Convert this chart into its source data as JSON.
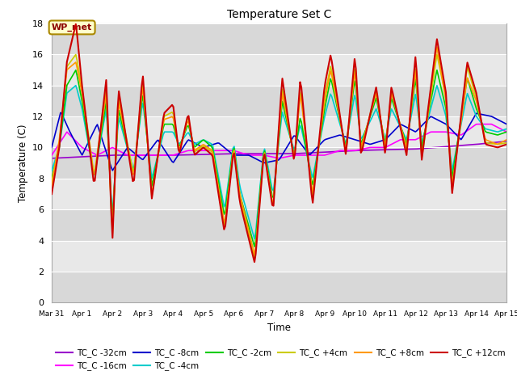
{
  "title": "Temperature Set C",
  "xlabel": "Time",
  "ylabel": "Temperature (C)",
  "ylim": [
    0,
    18
  ],
  "yticks": [
    0,
    2,
    4,
    6,
    8,
    10,
    12,
    14,
    16,
    18
  ],
  "fig_bg": "#ffffff",
  "plot_bg": "#e8e8e8",
  "grid_color": "#ffffff",
  "series_colors": {
    "TC_C -32cm": "#9900cc",
    "TC_C -16cm": "#ff00ff",
    "TC_C -8cm": "#0000cc",
    "TC_C -4cm": "#00cccc",
    "TC_C -2cm": "#00cc00",
    "TC_C +4cm": "#cccc00",
    "TC_C +8cm": "#ff9900",
    "TC_C +12cm": "#cc0000"
  },
  "x_tick_labels": [
    "Mar 31",
    "Apr 1",
    "Apr 2",
    "Apr 3",
    "Apr 4",
    "Apr 5",
    "Apr 6",
    "Apr 7",
    "Apr 8",
    "Apr 9",
    "Apr 10",
    "Apr 11",
    "Apr 12",
    "Apr 13",
    "Apr 14",
    "Apr 15"
  ],
  "wp_met_facecolor": "#ffffcc",
  "wp_met_edgecolor": "#aa8800",
  "wp_met_textcolor": "#8b0000"
}
